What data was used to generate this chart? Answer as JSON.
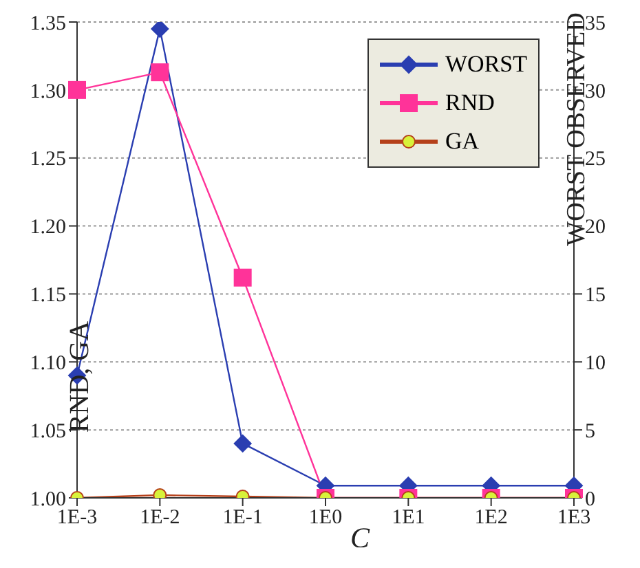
{
  "chart_data": {
    "type": "line",
    "xlabel": "C",
    "ylabel": "RND, GA",
    "y2label": "WORST OBSERVED",
    "categories": [
      "1E-3",
      "1E-2",
      "1E-1",
      "1E0",
      "1E1",
      "1E2",
      "1E3"
    ],
    "series": [
      {
        "name": "WORST",
        "color": "#2a3eb1",
        "marker": "diamond",
        "axis": "y2",
        "values": [
          9,
          34.5,
          4,
          0.9,
          0.9,
          0.9,
          0.9
        ]
      },
      {
        "name": "RND",
        "color": "#ff3399",
        "marker": "square",
        "values": [
          1.3,
          1.313,
          1.162,
          1.0,
          1.0,
          1.0,
          1.0
        ]
      },
      {
        "name": "GA",
        "color": "#b5401a",
        "marker": "circle",
        "values": [
          1.0,
          1.002,
          1.001,
          1.0,
          1.0,
          1.0,
          1.0
        ]
      }
    ],
    "ylim": [
      1.0,
      1.35
    ],
    "yticks": [
      {
        "value": 1.0,
        "label": "1.00"
      },
      {
        "value": 1.05,
        "label": "1.05"
      },
      {
        "value": 1.1,
        "label": "1.10"
      },
      {
        "value": 1.15,
        "label": "1.15"
      },
      {
        "value": 1.2,
        "label": "1.20"
      },
      {
        "value": 1.25,
        "label": "1.25"
      },
      {
        "value": 1.3,
        "label": "1.30"
      },
      {
        "value": 1.35,
        "label": "1.35"
      }
    ],
    "y2lim": [
      0,
      35
    ],
    "y2ticks": [
      0,
      5,
      10,
      15,
      20,
      25,
      30,
      35
    ],
    "grid": "y",
    "legend": "top right",
    "line_style": "solid"
  }
}
